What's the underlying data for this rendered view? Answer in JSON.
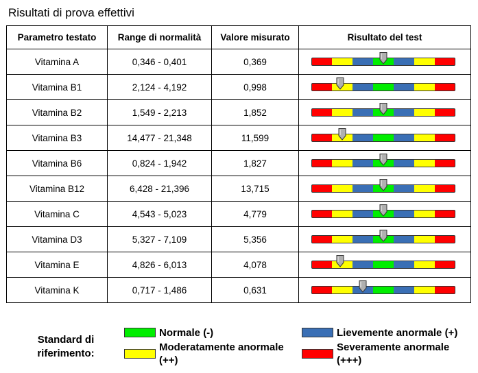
{
  "page_title": "Risultati di prova effettivi",
  "table": {
    "headers": [
      "Parametro testato",
      "Range di normalità",
      "Valore misurato",
      "Risultato del test"
    ],
    "rows": [
      {
        "param": "Vitamina A",
        "range": "0,346 - 0,401",
        "value": "0,369",
        "pointer_segment": 3.5
      },
      {
        "param": "Vitamina B1",
        "range": "2,124 - 4,192",
        "value": "0,998",
        "pointer_segment": 1.4
      },
      {
        "param": "Vitamina B2",
        "range": "1,549 - 2,213",
        "value": "1,852",
        "pointer_segment": 3.5
      },
      {
        "param": "Vitamina B3",
        "range": "14,477 - 21,348",
        "value": "11,599",
        "pointer_segment": 1.5
      },
      {
        "param": "Vitamina B6",
        "range": "0,824 - 1,942",
        "value": "1,827",
        "pointer_segment": 3.5
      },
      {
        "param": "Vitamina B12",
        "range": "6,428 - 21,396",
        "value": "13,715",
        "pointer_segment": 3.5
      },
      {
        "param": "Vitamina C",
        "range": "4,543 - 5,023",
        "value": "4,779",
        "pointer_segment": 3.5
      },
      {
        "param": "Vitamina D3",
        "range": "5,327 - 7,109",
        "value": "5,356",
        "pointer_segment": 3.5
      },
      {
        "param": "Vitamina E",
        "range": "4,826 - 6,013",
        "value": "4,078",
        "pointer_segment": 1.4
      },
      {
        "param": "Vitamina K",
        "range": "0,717 - 1,486",
        "value": "0,631",
        "pointer_segment": 2.5
      }
    ]
  },
  "scale_colors": [
    "#ff0000",
    "#ffff00",
    "#3a6fb5",
    "#00ee00",
    "#3a6fb5",
    "#ffff00",
    "#ff0000"
  ],
  "legend": {
    "title": "Standard di riferimento:",
    "items": [
      {
        "label": "Normale (-)",
        "color": "#00ee00"
      },
      {
        "label": "Lievemente anormale (+)",
        "color": "#3a6fb5"
      },
      {
        "label": "Moderatamente anormale (++)",
        "color": "#ffff00"
      },
      {
        "label": "Severamente anormale (+++)",
        "color": "#ff0000"
      }
    ]
  }
}
